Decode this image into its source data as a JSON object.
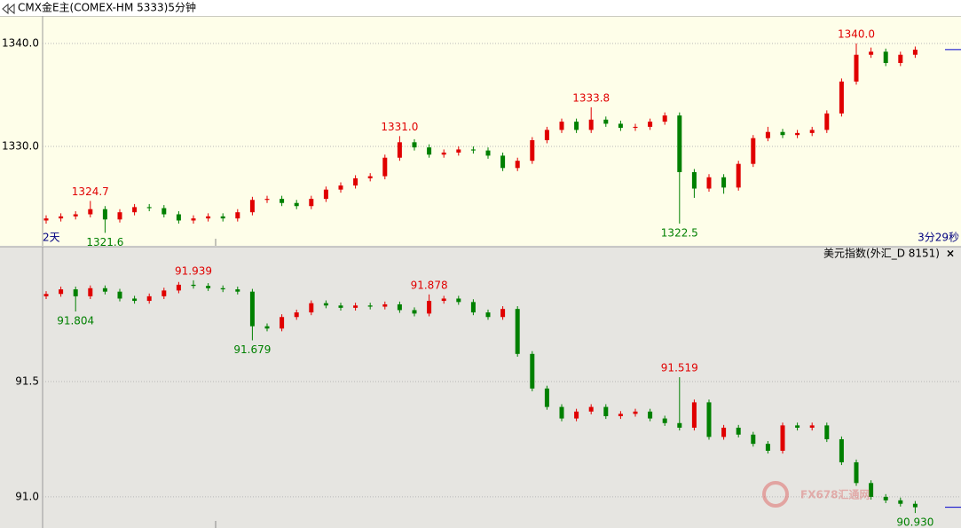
{
  "watermark": "FX678汇通网",
  "chart_data": [
    {
      "type": "candlestick",
      "title": "CMX金E主(COMEX-HM 5333)5分钟",
      "period_label": "2天",
      "countdown": "3分29秒",
      "up_color": "#e00000",
      "down_color": "#008000",
      "high_label_color": "#e00000",
      "low_label_color": "#008000",
      "grid": true,
      "ylim": [
        1320.34,
        1342.67
      ],
      "yticks": [
        {
          "value": 1330,
          "label": "1330.0"
        },
        {
          "value": 1340,
          "label": "1340.0"
        }
      ],
      "open": [
        1322.8,
        1323.0,
        1323.2,
        1323.4,
        1323.9,
        1322.9,
        1323.6,
        1324.1,
        1324.0,
        1323.4,
        1322.8,
        1323.0,
        1323.2,
        1323.0,
        1323.6,
        1324.8,
        1324.9,
        1324.5,
        1324.2,
        1324.9,
        1325.8,
        1326.2,
        1326.9,
        1327.1,
        1328.9,
        1330.4,
        1329.9,
        1329.2,
        1329.4,
        1329.7,
        1329.6,
        1329.1,
        1327.9,
        1328.6,
        1330.6,
        1331.6,
        1332.4,
        1331.6,
        1332.6,
        1332.2,
        1331.8,
        1331.9,
        1332.4,
        1333.0,
        1327.5,
        1325.9,
        1327.0,
        1326.0,
        1328.3,
        1330.8,
        1331.4,
        1331.1,
        1331.3,
        1331.6,
        1333.2,
        1336.3,
        1338.9,
        1339.2,
        1338.1,
        1338.9
      ],
      "high": [
        1323.3,
        1323.5,
        1323.7,
        1324.7,
        1324.2,
        1323.9,
        1324.4,
        1324.4,
        1324.3,
        1323.7,
        1323.3,
        1323.5,
        1323.5,
        1323.9,
        1325.1,
        1325.2,
        1325.2,
        1324.8,
        1325.2,
        1326.1,
        1326.5,
        1327.2,
        1327.4,
        1329.2,
        1331.0,
        1330.7,
        1330.2,
        1329.7,
        1330.0,
        1330.0,
        1329.9,
        1329.4,
        1328.9,
        1330.9,
        1331.9,
        1332.7,
        1332.7,
        1333.8,
        1332.9,
        1332.5,
        1332.2,
        1332.7,
        1333.3,
        1333.3,
        1327.8,
        1327.3,
        1327.3,
        1328.6,
        1331.1,
        1331.9,
        1331.7,
        1331.6,
        1331.9,
        1333.5,
        1336.6,
        1340.0,
        1339.6,
        1339.5,
        1339.2,
        1339.7
      ],
      "low": [
        1322.5,
        1322.7,
        1322.9,
        1323.1,
        1321.6,
        1322.6,
        1323.3,
        1323.7,
        1323.1,
        1322.5,
        1322.5,
        1322.7,
        1322.7,
        1322.7,
        1323.3,
        1324.5,
        1324.2,
        1323.9,
        1323.9,
        1324.6,
        1325.5,
        1325.9,
        1326.6,
        1326.8,
        1328.6,
        1329.6,
        1328.9,
        1328.9,
        1329.1,
        1329.3,
        1328.8,
        1327.6,
        1327.6,
        1328.3,
        1330.3,
        1331.3,
        1331.3,
        1331.3,
        1331.9,
        1331.5,
        1331.5,
        1331.6,
        1332.1,
        1322.5,
        1325.0,
        1325.6,
        1325.4,
        1325.7,
        1328.0,
        1330.5,
        1330.8,
        1330.8,
        1331.0,
        1331.3,
        1332.9,
        1336.0,
        1338.6,
        1337.8,
        1337.8,
        1338.6
      ],
      "close": [
        1323.0,
        1323.2,
        1323.4,
        1323.9,
        1322.9,
        1323.6,
        1324.1,
        1324.0,
        1323.4,
        1322.8,
        1323.0,
        1323.2,
        1323.0,
        1323.6,
        1324.8,
        1324.9,
        1324.5,
        1324.2,
        1324.9,
        1325.8,
        1326.2,
        1326.9,
        1327.1,
        1328.9,
        1330.4,
        1329.9,
        1329.2,
        1329.4,
        1329.7,
        1329.6,
        1329.1,
        1327.9,
        1328.6,
        1330.6,
        1331.6,
        1332.4,
        1331.6,
        1332.6,
        1332.2,
        1331.8,
        1331.9,
        1332.4,
        1333.0,
        1327.5,
        1325.9,
        1327.0,
        1326.0,
        1328.3,
        1330.8,
        1331.4,
        1331.1,
        1331.3,
        1331.6,
        1333.2,
        1336.3,
        1338.9,
        1339.2,
        1338.1,
        1338.9,
        1339.4
      ],
      "high_labels": [
        null,
        null,
        null,
        "1324.7",
        null,
        null,
        null,
        null,
        null,
        null,
        null,
        null,
        null,
        null,
        null,
        null,
        null,
        null,
        null,
        null,
        null,
        null,
        null,
        null,
        "1331.0",
        null,
        null,
        null,
        null,
        null,
        null,
        null,
        null,
        null,
        null,
        null,
        null,
        "1333.8",
        null,
        null,
        null,
        null,
        null,
        null,
        null,
        null,
        null,
        null,
        null,
        null,
        null,
        null,
        null,
        null,
        null,
        "1340.0",
        null,
        null,
        null,
        null
      ],
      "low_labels": [
        null,
        null,
        null,
        null,
        "1321.6",
        null,
        null,
        null,
        null,
        null,
        null,
        null,
        null,
        null,
        null,
        null,
        null,
        null,
        null,
        null,
        null,
        null,
        null,
        null,
        null,
        null,
        null,
        null,
        null,
        null,
        null,
        null,
        null,
        null,
        null,
        null,
        null,
        null,
        null,
        null,
        null,
        null,
        null,
        "1322.5",
        null,
        null,
        null,
        null,
        null,
        null,
        null,
        null,
        null,
        null,
        null,
        null,
        null,
        null,
        null,
        null
      ]
    },
    {
      "type": "candlestick",
      "title": "美元指数(外汇_D 8151)",
      "close_button": "×",
      "up_color": "#e00000",
      "down_color": "#008000",
      "high_label_color": "#e00000",
      "low_label_color": "#008000",
      "grid": true,
      "ylim": [
        90.865,
        92.085
      ],
      "yticks": [
        {
          "value": 91,
          "label": "91.0"
        },
        91.5
      ],
      "open": [
        91.87,
        91.88,
        91.9,
        91.87,
        91.905,
        91.89,
        91.86,
        91.85,
        91.87,
        91.895,
        91.92,
        91.915,
        91.905,
        91.9,
        91.89,
        91.74,
        91.73,
        91.78,
        91.8,
        91.84,
        91.83,
        91.82,
        91.83,
        91.825,
        91.835,
        91.81,
        91.795,
        91.85,
        91.86,
        91.845,
        91.8,
        91.78,
        91.815,
        91.62,
        91.47,
        91.39,
        91.34,
        91.37,
        91.39,
        91.35,
        91.36,
        91.37,
        91.34,
        91.32,
        91.3,
        91.41,
        91.26,
        91.3,
        91.27,
        91.23,
        91.2,
        91.31,
        91.3,
        91.31,
        91.25,
        91.15,
        91.06,
        91.0,
        90.985,
        90.97
      ],
      "high": [
        91.892,
        91.912,
        91.912,
        91.917,
        91.917,
        91.902,
        91.872,
        91.882,
        91.907,
        91.932,
        91.939,
        91.927,
        91.917,
        91.912,
        91.902,
        91.752,
        91.792,
        91.812,
        91.852,
        91.852,
        91.842,
        91.842,
        91.842,
        91.847,
        91.847,
        91.822,
        91.878,
        91.872,
        91.872,
        91.857,
        91.812,
        91.827,
        91.827,
        91.632,
        91.482,
        91.402,
        91.382,
        91.402,
        91.402,
        91.372,
        91.382,
        91.382,
        91.352,
        91.519,
        91.422,
        91.422,
        91.312,
        91.312,
        91.282,
        91.242,
        91.322,
        91.322,
        91.322,
        91.322,
        91.262,
        91.162,
        91.072,
        91.012,
        90.997,
        90.982
      ],
      "low": [
        91.858,
        91.868,
        91.804,
        91.858,
        91.878,
        91.848,
        91.838,
        91.838,
        91.858,
        91.883,
        91.903,
        91.893,
        91.888,
        91.878,
        91.679,
        91.718,
        91.718,
        91.768,
        91.788,
        91.818,
        91.808,
        91.808,
        91.813,
        91.813,
        91.798,
        91.783,
        91.783,
        91.838,
        91.833,
        91.788,
        91.768,
        91.768,
        91.608,
        91.458,
        91.378,
        91.328,
        91.328,
        91.358,
        91.338,
        91.338,
        91.348,
        91.328,
        91.308,
        91.288,
        91.288,
        91.248,
        91.248,
        91.258,
        91.218,
        91.188,
        91.188,
        91.288,
        91.288,
        91.238,
        91.138,
        91.048,
        90.988,
        90.973,
        90.958,
        90.93
      ],
      "close": [
        91.88,
        91.9,
        91.87,
        91.905,
        91.89,
        91.86,
        91.85,
        91.87,
        91.895,
        91.92,
        91.915,
        91.905,
        91.9,
        91.89,
        91.74,
        91.73,
        91.78,
        91.8,
        91.84,
        91.83,
        91.82,
        91.83,
        91.825,
        91.835,
        91.81,
        91.795,
        91.85,
        91.86,
        91.845,
        91.8,
        91.78,
        91.815,
        91.62,
        91.47,
        91.39,
        91.34,
        91.37,
        91.39,
        91.35,
        91.36,
        91.37,
        91.34,
        91.32,
        91.3,
        91.41,
        91.26,
        91.3,
        91.27,
        91.23,
        91.2,
        91.31,
        91.3,
        91.31,
        91.25,
        91.15,
        91.06,
        91.0,
        90.985,
        90.97,
        90.955
      ],
      "high_labels": [
        null,
        null,
        null,
        null,
        null,
        null,
        null,
        null,
        null,
        null,
        "91.939",
        null,
        null,
        null,
        null,
        null,
        null,
        null,
        null,
        null,
        null,
        null,
        null,
        null,
        null,
        null,
        "91.878",
        null,
        null,
        null,
        null,
        null,
        null,
        null,
        null,
        null,
        null,
        null,
        null,
        null,
        null,
        null,
        null,
        "91.519",
        null,
        null,
        null,
        null,
        null,
        null,
        null,
        null,
        null,
        null,
        null,
        null,
        null,
        null,
        null,
        null
      ],
      "low_labels": [
        null,
        null,
        "91.804",
        null,
        null,
        null,
        null,
        null,
        null,
        null,
        null,
        null,
        null,
        null,
        "91.679",
        null,
        null,
        null,
        null,
        null,
        null,
        null,
        null,
        null,
        null,
        null,
        null,
        null,
        null,
        null,
        null,
        null,
        null,
        null,
        null,
        null,
        null,
        null,
        null,
        null,
        null,
        null,
        null,
        null,
        null,
        null,
        null,
        null,
        null,
        null,
        null,
        null,
        null,
        null,
        null,
        null,
        null,
        null,
        null,
        "90.930"
      ]
    }
  ]
}
